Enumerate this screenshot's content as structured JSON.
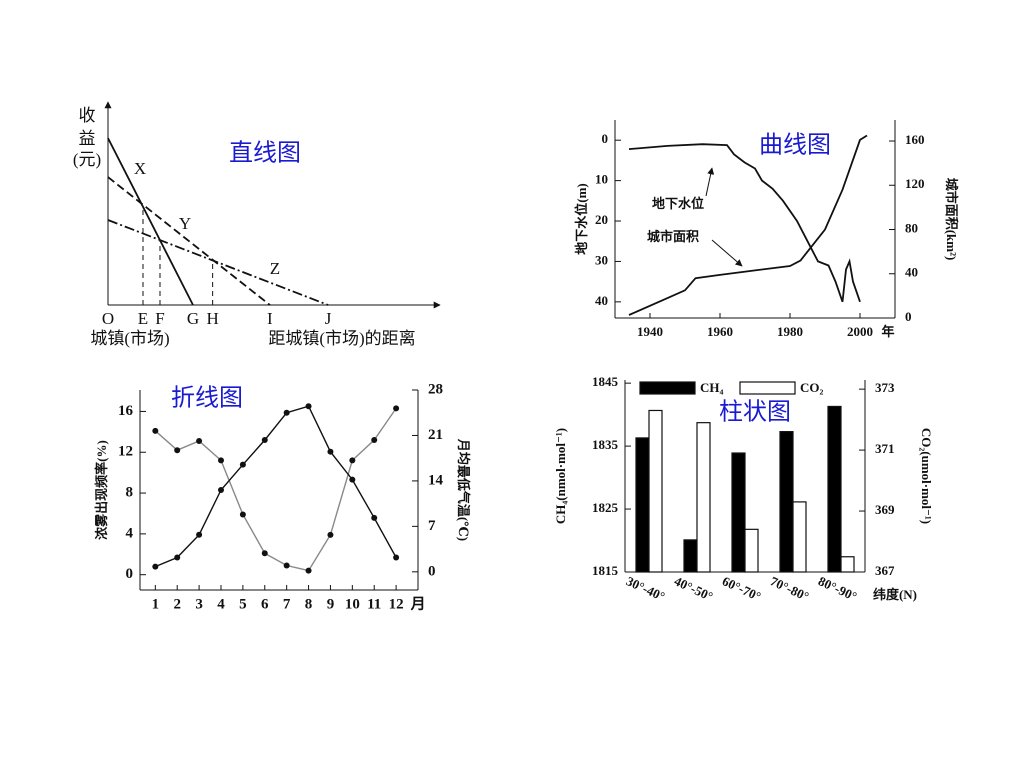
{
  "chart_data": [
    {
      "type": "line",
      "title": "直线图",
      "ylabel": [
        "收",
        "益",
        "(元)"
      ],
      "origin_label": "城镇(市场)",
      "xlabel": "距城镇(市场)的距离",
      "xlim": [
        0,
        10
      ],
      "ylim": [
        0,
        10
      ],
      "xticks": [
        {
          "value": 0,
          "label": "O"
        },
        {
          "value": 1.07,
          "label": "E"
        },
        {
          "value": 1.59,
          "label": "F"
        },
        {
          "value": 2.6,
          "label": "G"
        },
        {
          "value": 3.2,
          "label": "H"
        },
        {
          "value": 4.95,
          "label": "I"
        },
        {
          "value": 6.73,
          "label": "J"
        }
      ],
      "series": [
        {
          "name": "X",
          "color": "#111111",
          "line_style": "solid",
          "x": [
            0,
            2.6
          ],
          "values": [
            8.56,
            0
          ]
        },
        {
          "name": "Y",
          "color": "#111111",
          "line_style": "dashed",
          "x": [
            0,
            4.95
          ],
          "values": [
            6.56,
            0
          ]
        },
        {
          "name": "Z",
          "color": "#111111",
          "line_style": "dashdot",
          "x": [
            0,
            6.73
          ],
          "values": [
            4.36,
            0
          ]
        }
      ]
    },
    {
      "type": "line",
      "title": "曲线图",
      "ylabel": "地下水位(m)",
      "y2label": "城市面积(km²)",
      "x_unit": "年",
      "xlim": [
        1930,
        2010
      ],
      "xticks": [
        1940,
        1960,
        1980,
        2000
      ],
      "ylim": [
        44,
        -5
      ],
      "yticks": [
        0,
        10,
        20,
        30,
        40
      ],
      "y2lim": [
        0,
        179
      ],
      "y2ticks": [
        0,
        40,
        80,
        120,
        160
      ],
      "series": [
        {
          "name": "地下水位",
          "color": "#111111",
          "axis": "y",
          "x": [
            1934,
            1945,
            1955,
            1962,
            1964,
            1967,
            1970,
            1972,
            1975,
            1978,
            1982,
            1985,
            1988,
            1991,
            1993,
            1995,
            1996,
            1997,
            1998,
            2000
          ],
          "values": [
            2.2,
            1.4,
            1.0,
            1.2,
            3.5,
            5.5,
            7,
            10,
            12,
            15,
            20,
            25,
            30,
            31,
            35,
            40,
            32,
            30,
            35,
            40
          ]
        },
        {
          "name": "城市面积",
          "color": "#111111",
          "axis": "y2",
          "x": [
            1934,
            1945,
            1950,
            1953,
            1960,
            1970,
            1980,
            1983,
            1990,
            1995,
            2000,
            2002
          ],
          "values": [
            2.7,
            18,
            25,
            36,
            39,
            43,
            47,
            52,
            80,
            116,
            161,
            165
          ]
        }
      ]
    },
    {
      "type": "line",
      "title": "折线图",
      "ylabel": "浓雾出现频率(%)",
      "y2label": "月均最低气温(℃)",
      "x_unit": "月",
      "markers": true,
      "x": [
        1,
        2,
        3,
        4,
        5,
        6,
        7,
        8,
        9,
        10,
        11,
        12
      ],
      "xlim": [
        0.3,
        13
      ],
      "xticks": [
        1,
        2,
        3,
        4,
        5,
        6,
        7,
        8,
        9,
        10,
        11,
        12
      ],
      "ylim": [
        -1.5,
        18.1
      ],
      "yticks": [
        0,
        4,
        8,
        12,
        16
      ],
      "y2lim": [
        -2.8,
        28
      ],
      "y2ticks": [
        0,
        7,
        14,
        21,
        28
      ],
      "series": [
        {
          "color": "#888888",
          "axis": "y",
          "values": [
            14.1,
            12.2,
            13.1,
            11.2,
            5.9,
            2.1,
            0.9,
            0.4,
            3.9,
            11.2,
            13.2,
            16.3
          ]
        },
        {
          "color": "#111111",
          "axis": "y2",
          "values": [
            0.8,
            2.2,
            5.7,
            12.6,
            16.5,
            20.3,
            24.5,
            25.5,
            18.5,
            14.2,
            8.3,
            2.2
          ]
        }
      ]
    },
    {
      "type": "bar",
      "title": "柱状图",
      "ylabel": "CH₄(nmol·mol⁻¹)",
      "y2label": "CO₂(umol·mol⁻¹)",
      "xlabel": "纬度(N)",
      "legend": "top",
      "categories": [
        "30°-40°",
        "40°-50°",
        "60°-70°",
        "70°-80°",
        "80°-90°"
      ],
      "ylim": [
        1815,
        1845.5
      ],
      "yticks": [
        1815,
        1825,
        1835,
        1845
      ],
      "y2lim": [
        367,
        373.3
      ],
      "y2ticks": [
        367,
        369,
        371,
        373
      ],
      "series": [
        {
          "name": "CH₄",
          "color": "#000000",
          "axis": "y",
          "values": [
            1836.3,
            1820.1,
            1833.9,
            1837.3,
            1841.3
          ]
        },
        {
          "name": "CO₂",
          "color": "#ffffff",
          "axis": "y2",
          "values": [
            372.3,
            371.9,
            368.4,
            369.3,
            367.5
          ]
        }
      ]
    }
  ]
}
